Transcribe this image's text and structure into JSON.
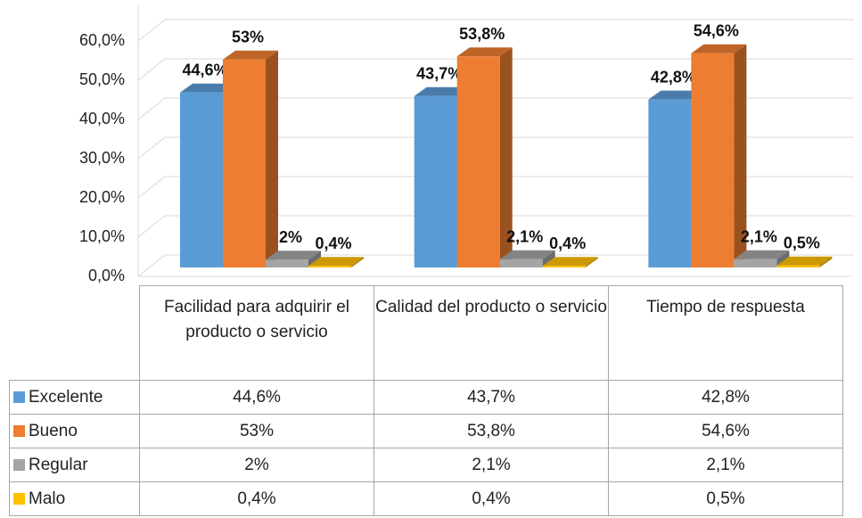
{
  "chart_data": {
    "type": "bar3d",
    "categories": [
      "Facilidad para adquirir el producto o servicio",
      "Calidad del producto o servicio",
      "Tiempo de respuesta"
    ],
    "series": [
      {
        "name": "Excelente",
        "color": "#5b9bd5",
        "values": [
          44.6,
          43.7,
          42.8
        ],
        "value_labels": [
          "44,6%",
          "43,7%",
          "42,8%"
        ]
      },
      {
        "name": "Bueno",
        "color": "#ed7d31",
        "values": [
          53,
          53.8,
          54.6
        ],
        "value_labels": [
          "53%",
          "53,8%",
          "54,6%"
        ]
      },
      {
        "name": "Regular",
        "color": "#a5a5a5",
        "values": [
          2,
          2.1,
          2.1
        ],
        "value_labels": [
          "2%",
          "2,1%",
          "2,1%"
        ]
      },
      {
        "name": "Malo",
        "color": "#ffc000",
        "values": [
          0.4,
          0.4,
          0.5
        ],
        "value_labels": [
          "0,4%",
          "0,4%",
          "0,5%"
        ]
      }
    ],
    "ylim": [
      0,
      60
    ],
    "yticks": [
      {
        "value": 0,
        "label": "0,0%"
      },
      {
        "value": 10,
        "label": "10,0%"
      },
      {
        "value": 20,
        "label": "20,0%"
      },
      {
        "value": 30,
        "label": "30,0%"
      },
      {
        "value": 40,
        "label": "40,0%"
      },
      {
        "value": 50,
        "label": "50,0%"
      },
      {
        "value": 60,
        "label": "60,0%"
      }
    ],
    "grid": true
  }
}
